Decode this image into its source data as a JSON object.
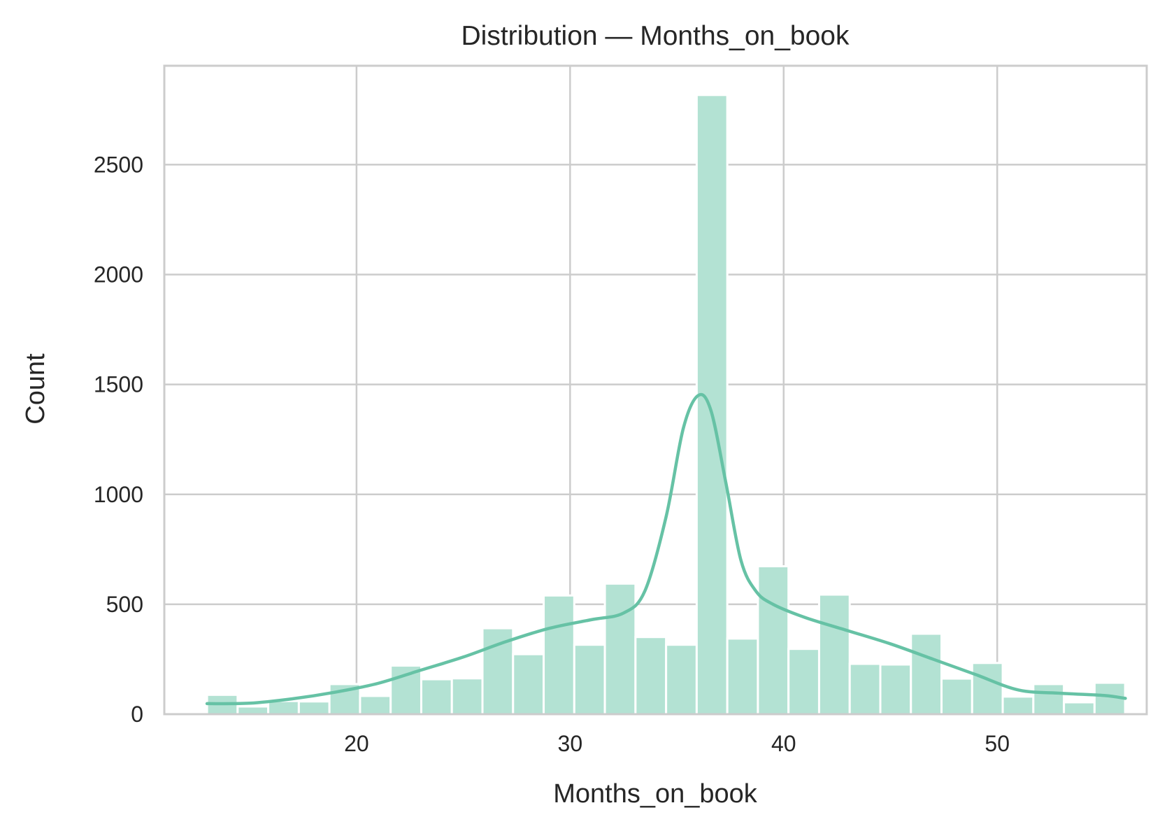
{
  "chart_data": {
    "type": "bar",
    "subtype": "histogram",
    "title": "Distribution — Months_on_book",
    "xlabel": "Months_on_book",
    "ylabel": "Count",
    "xlim": [
      11,
      57
    ],
    "ylim": [
      0,
      2950
    ],
    "xticks": [
      20,
      30,
      40,
      50
    ],
    "yticks": [
      0,
      500,
      1000,
      1500,
      2000,
      2500
    ],
    "grid": true,
    "bins": {
      "start": 13,
      "width": 1.433,
      "counts": [
        88,
        35,
        60,
        58,
        137,
        83,
        221,
        159,
        163,
        391,
        273,
        540,
        316,
        594,
        351,
        316,
        2817,
        344,
        673,
        297,
        544,
        229,
        226,
        366,
        162,
        233,
        80,
        137,
        54,
        143
      ]
    },
    "kde": {
      "x": [
        13,
        15,
        17,
        19,
        21,
        23,
        25,
        27,
        29,
        31,
        32.5,
        33.5,
        34.5,
        35.3,
        36,
        36.6,
        37.3,
        38,
        38.7,
        39.5,
        41,
        43,
        45,
        47,
        49,
        51,
        53,
        55,
        56
      ],
      "y": [
        48,
        50,
        70,
        100,
        140,
        200,
        260,
        330,
        390,
        430,
        460,
        560,
        900,
        1300,
        1450,
        1380,
        1050,
        700,
        560,
        500,
        440,
        380,
        320,
        250,
        180,
        110,
        95,
        85,
        72
      ]
    },
    "colors": {
      "bar": "#b3e2d3",
      "kde": "#66c2a5",
      "grid": "#cccccc",
      "spine": "#cccccc",
      "text": "#262626"
    }
  }
}
